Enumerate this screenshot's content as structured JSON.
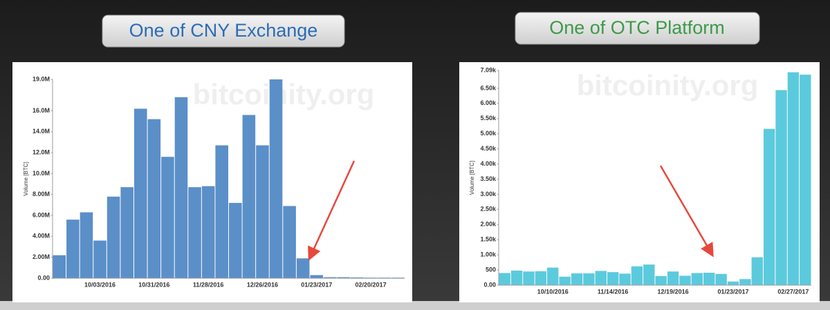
{
  "chart_data": [
    {
      "type": "bar",
      "title": "One of CNY Exchange",
      "watermark": "bitcoinity.org",
      "y_label": "Volume [BTC]",
      "color": "#5b8fc8",
      "categories": [
        null,
        null,
        null,
        "10/03/2016",
        null,
        null,
        null,
        "10/31/2016",
        null,
        null,
        null,
        "11/28/2016",
        null,
        null,
        null,
        "12/26/2016",
        null,
        null,
        null,
        "01/23/2017",
        null,
        null,
        null,
        "02/20/2017",
        null,
        null
      ],
      "values": [
        2200000,
        5600000,
        6300000,
        3600000,
        7800000,
        8700000,
        16200000,
        15200000,
        11600000,
        17300000,
        8700000,
        8800000,
        12700000,
        7200000,
        15600000,
        12700000,
        19000000,
        6900000,
        1900000,
        300000,
        100000,
        100000,
        80000,
        60000,
        60000,
        60000
      ],
      "ylim": [
        0,
        19000000
      ],
      "yticks": [
        {
          "value": 0,
          "label": "0.00"
        },
        {
          "value": 2000000,
          "label": "2.00M"
        },
        {
          "value": 4000000,
          "label": "4.00M"
        },
        {
          "value": 6000000,
          "label": "6.00M"
        },
        {
          "value": 8000000,
          "label": "8.00M"
        },
        {
          "value": 10000000,
          "label": "10.0M"
        },
        {
          "value": 12000000,
          "label": "12.0M"
        },
        {
          "value": 14000000,
          "label": "14.0M"
        },
        {
          "value": 16000000,
          "label": "16.0M"
        },
        {
          "value": 19000000,
          "label": "19.0M"
        }
      ]
    },
    {
      "type": "bar",
      "title": "One of OTC Platform",
      "watermark": "bitcoinity.org",
      "y_label": "Volume [BTC]",
      "color": "#5ccadd",
      "categories": [
        null,
        null,
        null,
        null,
        "10/10/2016",
        null,
        null,
        null,
        null,
        "11/14/2016",
        null,
        null,
        null,
        null,
        "12/19/2016",
        null,
        null,
        null,
        null,
        "01/23/2017",
        null,
        null,
        null,
        null,
        "02/27/2017",
        null
      ],
      "values": [
        400,
        480,
        450,
        460,
        580,
        280,
        390,
        390,
        470,
        430,
        380,
        620,
        680,
        300,
        450,
        310,
        400,
        410,
        370,
        120,
        200,
        920,
        5160,
        6440,
        7030,
        6950
      ],
      "ylim": [
        0,
        7090
      ],
      "yticks": [
        {
          "value": 0,
          "label": "0.00"
        },
        500,
        {
          "value": 1000,
          "label": "1.00k"
        },
        {
          "value": 1500,
          "label": "1.50k"
        },
        {
          "value": 2000,
          "label": "2.00k"
        },
        {
          "value": 2500,
          "label": "2.50k"
        },
        {
          "value": 3000,
          "label": "3.00k"
        },
        {
          "value": 3500,
          "label": "3.50k"
        },
        {
          "value": 4000,
          "label": "4.00k"
        },
        {
          "value": 4500,
          "label": "4.50k"
        },
        {
          "value": 5000,
          "label": "5.00k"
        },
        {
          "value": 5500,
          "label": "5.50k"
        },
        {
          "value": 6000,
          "label": "6.00k"
        },
        {
          "value": 6500,
          "label": "6.50k"
        },
        {
          "value": 7090,
          "label": "7.09k"
        }
      ]
    }
  ]
}
